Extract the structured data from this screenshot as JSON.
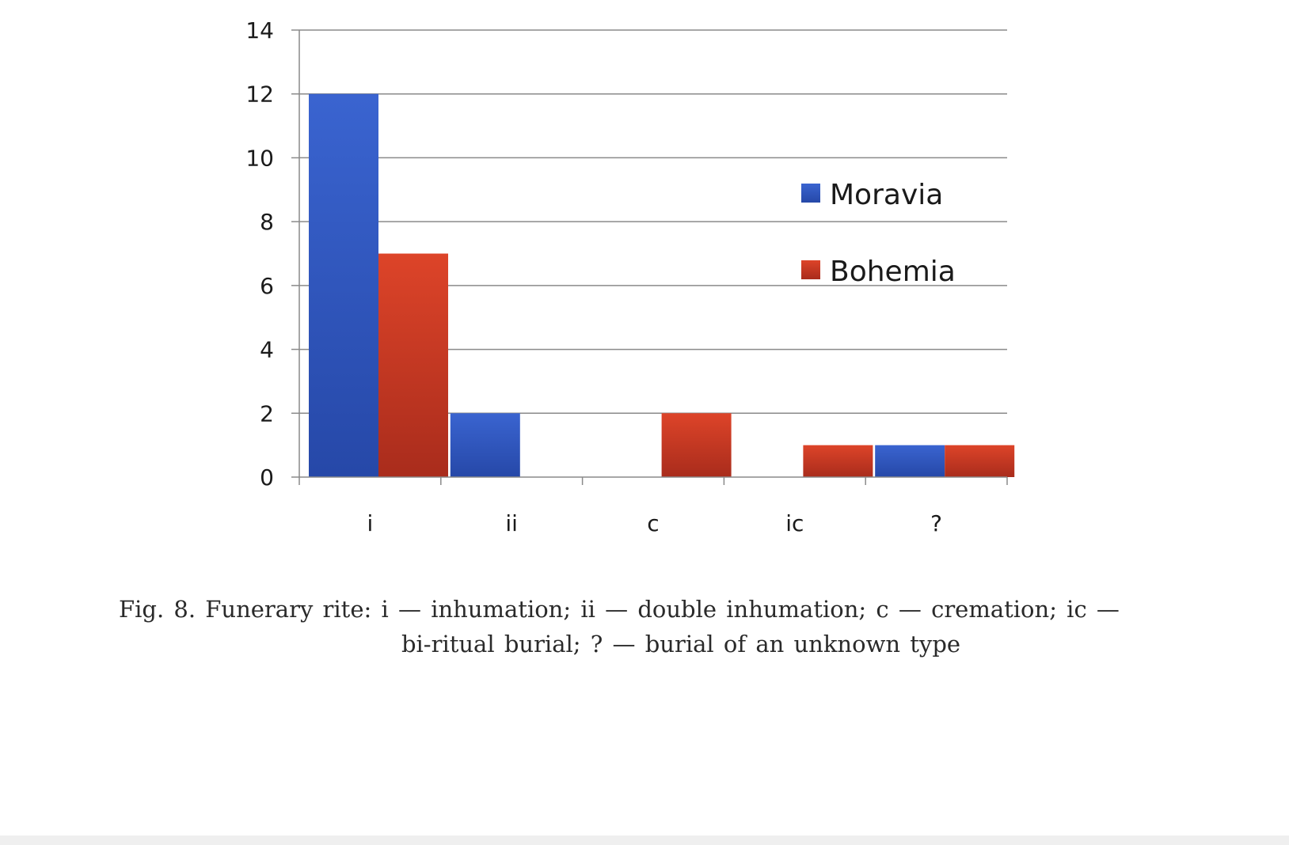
{
  "chart_data": {
    "type": "bar",
    "categories": [
      "i",
      "ii",
      "c",
      "ic",
      "?"
    ],
    "series": [
      {
        "name": "Moravia",
        "values": [
          12,
          2,
          0,
          0,
          1
        ],
        "color": "#2f56c2"
      },
      {
        "name": "Bohemia",
        "values": [
          7,
          0,
          2,
          1,
          1
        ],
        "color": "#cf3a24"
      }
    ],
    "ylim": [
      0,
      14
    ],
    "yticks": [
      "0",
      "2",
      "4",
      "6",
      "8",
      "10",
      "12",
      "14"
    ],
    "grid": true,
    "legend_position": "right-inside"
  },
  "caption": {
    "line1": "Fig. 8. Funerary rite: i — inhumation; ii — double inhumation; c — cremation; ic —",
    "line2": "bi-ritual burial; ? — burial of an unknown type"
  }
}
